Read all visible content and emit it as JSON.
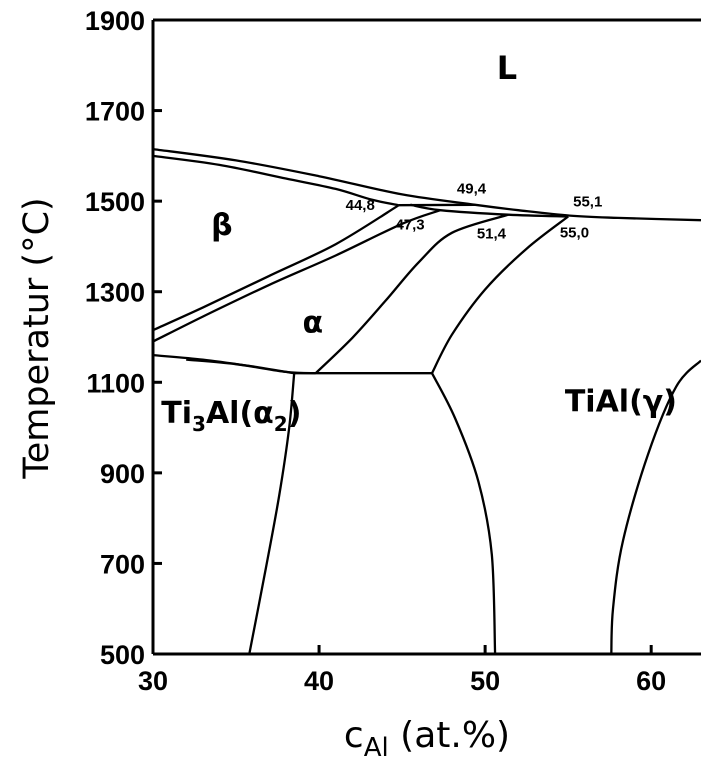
{
  "chart_data": {
    "type": "line",
    "xlabel_main": "c",
    "xlabel_sub": "Al",
    "xlabel_rest": " (at.%)",
    "ylabel": "Temperatur (°C)",
    "xlim": [
      30,
      63
    ],
    "ylim": [
      500,
      1900
    ],
    "x_ticks": [
      {
        "value": 30,
        "label": "30"
      },
      {
        "value": 40,
        "label": "40"
      },
      {
        "value": 50,
        "label": "50"
      },
      {
        "value": 60,
        "label": "60"
      }
    ],
    "y_ticks": [
      {
        "value": 500,
        "label": "500"
      },
      {
        "value": 700,
        "label": "700"
      },
      {
        "value": 900,
        "label": "900"
      },
      {
        "value": 1100,
        "label": "1100"
      },
      {
        "value": 1300,
        "label": "1300"
      },
      {
        "value": 1500,
        "label": "1500"
      },
      {
        "value": 1700,
        "label": "1700"
      },
      {
        "value": 1900,
        "label": "1900"
      }
    ],
    "regions": [
      {
        "id": "L",
        "text": "L",
        "x": 50.7,
        "y": 1770
      },
      {
        "id": "beta",
        "text": "β",
        "x": 33.5,
        "y": 1425
      },
      {
        "id": "alpha",
        "text": "α",
        "x": 39.0,
        "y": 1210
      }
    ],
    "region_ti3al": {
      "base": "Ti",
      "sub": "3",
      "mid": "Al(α",
      "sub2": "2",
      "end": ")",
      "x": 30.5,
      "y": 1010
    },
    "region_tial": {
      "text": "TiAl(γ)",
      "x": 54.8,
      "y": 1035
    },
    "annotations": [
      {
        "id": "c448",
        "text": "44,8",
        "x": 41.6,
        "y": 1480
      },
      {
        "id": "c494",
        "text": "49,4",
        "x": 48.3,
        "y": 1517
      },
      {
        "id": "c473",
        "text": "47,3",
        "x": 44.6,
        "y": 1437
      },
      {
        "id": "c514",
        "text": "51,4",
        "x": 49.5,
        "y": 1418
      },
      {
        "id": "c551",
        "text": "55,1",
        "x": 55.3,
        "y": 1488
      },
      {
        "id": "c550",
        "text": "55,0",
        "x": 54.5,
        "y": 1420
      }
    ],
    "series": [
      {
        "values": [
          [
            30,
            1615
          ],
          [
            35,
            1590
          ],
          [
            40,
            1555
          ],
          [
            45,
            1515
          ],
          [
            49.4,
            1492
          ],
          [
            52,
            1480
          ],
          [
            55.1,
            1468
          ],
          [
            58,
            1463
          ],
          [
            63,
            1458
          ]
        ]
      },
      {
        "values": [
          [
            30,
            1600
          ],
          [
            34,
            1580
          ],
          [
            38,
            1550
          ],
          [
            41,
            1527
          ],
          [
            43.2,
            1503
          ],
          [
            44.8,
            1491
          ]
        ]
      },
      {
        "values": [
          [
            30,
            1215
          ],
          [
            33,
            1265
          ],
          [
            37,
            1335
          ],
          [
            41,
            1405
          ],
          [
            44.8,
            1491
          ]
        ]
      },
      {
        "values": [
          [
            44.8,
            1491
          ],
          [
            49.4,
            1492
          ]
        ]
      },
      {
        "values": [
          [
            30,
            1190
          ],
          [
            33,
            1245
          ],
          [
            37,
            1315
          ],
          [
            41,
            1380
          ],
          [
            45,
            1450
          ],
          [
            47.3,
            1480
          ]
        ]
      },
      {
        "values": [
          [
            30,
            1160
          ],
          [
            33,
            1150
          ],
          [
            36,
            1135
          ],
          [
            38.5,
            1120
          ]
        ]
      },
      {
        "values": [
          [
            32,
            1150
          ],
          [
            35,
            1140
          ],
          [
            38,
            1123
          ],
          [
            39.8,
            1120
          ]
        ]
      },
      {
        "values": [
          [
            38.5,
            1120
          ],
          [
            46.8,
            1120
          ]
        ]
      },
      {
        "values": [
          [
            39.8,
            1120
          ],
          [
            42,
            1198
          ],
          [
            44,
            1280
          ],
          [
            46,
            1365
          ],
          [
            48,
            1430
          ],
          [
            51.4,
            1470
          ]
        ]
      },
      {
        "values": [
          [
            45.5,
            1492
          ],
          [
            47.3,
            1480
          ],
          [
            51.4,
            1470
          ],
          [
            55.0,
            1466
          ]
        ]
      },
      {
        "values": [
          [
            46.8,
            1120
          ],
          [
            48,
            1205
          ],
          [
            50,
            1305
          ],
          [
            52.5,
            1395
          ],
          [
            55.0,
            1466
          ]
        ]
      },
      {
        "values": [
          [
            38.5,
            1120
          ],
          [
            38.2,
            1000
          ],
          [
            37.6,
            850
          ],
          [
            36.8,
            690
          ],
          [
            35.8,
            500
          ]
        ]
      },
      {
        "values": [
          [
            46.8,
            1120
          ],
          [
            48.2,
            1020
          ],
          [
            49.6,
            880
          ],
          [
            50.4,
            720
          ],
          [
            50.6,
            500
          ]
        ]
      },
      {
        "values": [
          [
            63,
            1148
          ],
          [
            61.5,
            1090
          ],
          [
            59.8,
            940
          ],
          [
            58.3,
            750
          ],
          [
            57.7,
            600
          ],
          [
            57.6,
            500
          ]
        ]
      }
    ]
  }
}
